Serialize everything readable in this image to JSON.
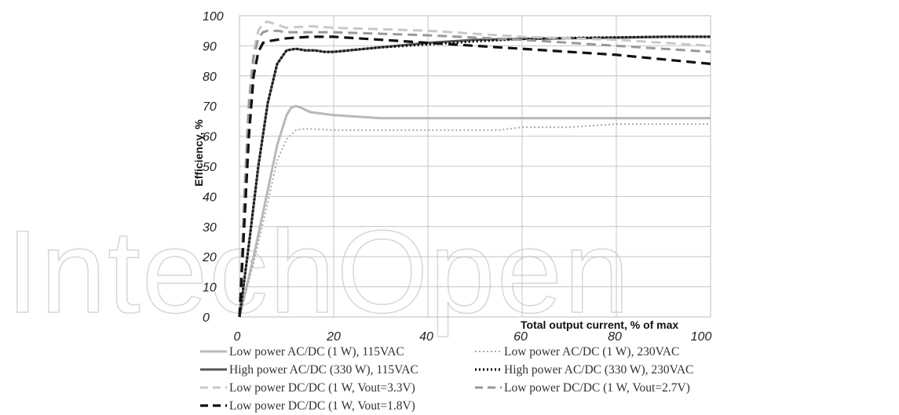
{
  "watermark": "IntechOpen",
  "chart_data": {
    "type": "line",
    "title": "",
    "xlabel": "Total output current, % of max",
    "ylabel": "Efficiency, %",
    "xlim": [
      0,
      100
    ],
    "ylim": [
      0,
      100
    ],
    "x_ticks": [
      "0",
      "20",
      "40",
      "60",
      "80",
      "100"
    ],
    "y_ticks": [
      "0",
      "10",
      "20",
      "30",
      "40",
      "50",
      "60",
      "70",
      "80",
      "90",
      "100"
    ],
    "grid": true,
    "legend_position": "bottom",
    "series": [
      {
        "name": "Low power AC/DC (1 W), 115VAC",
        "color": "#b8b8b8",
        "style": "solid",
        "points": [
          [
            0,
            0
          ],
          [
            3,
            20
          ],
          [
            6,
            42
          ],
          [
            8,
            57
          ],
          [
            10,
            67
          ],
          [
            11,
            69.5
          ],
          [
            12,
            70
          ],
          [
            13,
            69.5
          ],
          [
            15,
            68
          ],
          [
            20,
            67
          ],
          [
            30,
            66
          ],
          [
            50,
            66
          ],
          [
            70,
            66
          ],
          [
            100,
            66
          ]
        ]
      },
      {
        "name": "Low power AC/DC (1 W), 230VAC",
        "color": "#a8a8a8",
        "style": "dotted",
        "points": [
          [
            0,
            0
          ],
          [
            3,
            18
          ],
          [
            6,
            38
          ],
          [
            8,
            52
          ],
          [
            10,
            59
          ],
          [
            12,
            62
          ],
          [
            14,
            62.5
          ],
          [
            20,
            62
          ],
          [
            40,
            62
          ],
          [
            55,
            62
          ],
          [
            60,
            63
          ],
          [
            70,
            63
          ],
          [
            80,
            64
          ],
          [
            100,
            64
          ]
        ]
      },
      {
        "name": "High power AC/DC (330 W), 115VAC",
        "color": "#555555",
        "style": "solid",
        "points": [
          [
            0,
            0
          ],
          [
            2,
            24
          ],
          [
            4,
            50
          ],
          [
            6,
            71
          ],
          [
            8,
            84
          ],
          [
            10,
            88.5
          ],
          [
            12,
            89
          ],
          [
            14,
            88.5
          ],
          [
            16,
            88.5
          ],
          [
            18,
            88
          ],
          [
            20,
            88
          ],
          [
            30,
            89.5
          ],
          [
            40,
            91
          ],
          [
            50,
            92
          ],
          [
            60,
            92.3
          ],
          [
            70,
            92.5
          ],
          [
            80,
            92.7
          ],
          [
            90,
            93
          ],
          [
            100,
            93
          ]
        ]
      },
      {
        "name": "High power AC/DC (330 W), 230VAC",
        "color": "#111111",
        "style": "dotted",
        "points": [
          [
            0,
            0
          ],
          [
            2,
            24
          ],
          [
            4,
            50
          ],
          [
            6,
            71
          ],
          [
            8,
            84
          ],
          [
            10,
            88.5
          ],
          [
            12,
            89
          ],
          [
            14,
            88.5
          ],
          [
            16,
            88.5
          ],
          [
            18,
            88
          ],
          [
            20,
            88
          ],
          [
            30,
            89.5
          ],
          [
            40,
            90.5
          ],
          [
            50,
            91.5
          ],
          [
            60,
            92.3
          ],
          [
            70,
            92.6
          ],
          [
            80,
            92.8
          ],
          [
            90,
            93
          ],
          [
            100,
            93
          ]
        ]
      },
      {
        "name": "Low power DC/DC (1 W, Vout=3.3V)",
        "color": "#c8c8c8",
        "style": "dashed",
        "points": [
          [
            0,
            0
          ],
          [
            1,
            40
          ],
          [
            2,
            72
          ],
          [
            3,
            88
          ],
          [
            4,
            95
          ],
          [
            5,
            97.5
          ],
          [
            6,
            98
          ],
          [
            7,
            97.5
          ],
          [
            8,
            97
          ],
          [
            10,
            96
          ],
          [
            15,
            96.5
          ],
          [
            20,
            96
          ],
          [
            40,
            95
          ],
          [
            60,
            93
          ],
          [
            80,
            92
          ],
          [
            100,
            90
          ]
        ]
      },
      {
        "name": "Low power DC/DC (1 W, Vout=2.7V)",
        "color": "#999999",
        "style": "dashed",
        "points": [
          [
            0,
            0
          ],
          [
            1,
            38
          ],
          [
            2,
            70
          ],
          [
            3,
            86
          ],
          [
            4,
            92.5
          ],
          [
            5,
            94.5
          ],
          [
            6,
            95
          ],
          [
            8,
            95
          ],
          [
            10,
            94.5
          ],
          [
            20,
            94.5
          ],
          [
            40,
            93.5
          ],
          [
            60,
            92
          ],
          [
            80,
            90
          ],
          [
            100,
            88
          ]
        ]
      },
      {
        "name": "Low power DC/DC (1 W, Vout=1.8V)",
        "color": "#111111",
        "style": "dashed",
        "points": [
          [
            0,
            0
          ],
          [
            1,
            30
          ],
          [
            2,
            60
          ],
          [
            3,
            80
          ],
          [
            4,
            88
          ],
          [
            5,
            91
          ],
          [
            6,
            91.5
          ],
          [
            8,
            92
          ],
          [
            10,
            92.5
          ],
          [
            15,
            93
          ],
          [
            20,
            93
          ],
          [
            30,
            92
          ],
          [
            40,
            91
          ],
          [
            50,
            90
          ],
          [
            60,
            89
          ],
          [
            70,
            88
          ],
          [
            80,
            87
          ],
          [
            90,
            85.5
          ],
          [
            100,
            84
          ]
        ]
      }
    ]
  }
}
